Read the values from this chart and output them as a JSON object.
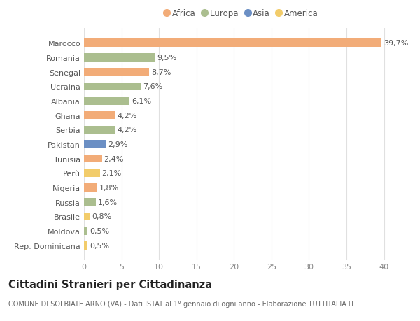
{
  "categories": [
    "Marocco",
    "Romania",
    "Senegal",
    "Ucraina",
    "Albania",
    "Ghana",
    "Serbia",
    "Pakistan",
    "Tunisia",
    "Perù",
    "Nigeria",
    "Russia",
    "Brasile",
    "Moldova",
    "Rep. Dominicana"
  ],
  "values": [
    39.7,
    9.5,
    8.7,
    7.6,
    6.1,
    4.2,
    4.2,
    2.9,
    2.4,
    2.1,
    1.8,
    1.6,
    0.8,
    0.5,
    0.5
  ],
  "labels": [
    "39,7%",
    "9,5%",
    "8,7%",
    "7,6%",
    "6,1%",
    "4,2%",
    "4,2%",
    "2,9%",
    "2,4%",
    "2,1%",
    "1,8%",
    "1,6%",
    "0,8%",
    "0,5%",
    "0,5%"
  ],
  "continents": [
    "Africa",
    "Europa",
    "Africa",
    "Europa",
    "Europa",
    "Africa",
    "Europa",
    "Asia",
    "Africa",
    "America",
    "Africa",
    "Europa",
    "America",
    "Europa",
    "America"
  ],
  "colors": {
    "Africa": "#F2AC78",
    "Europa": "#ABBE8F",
    "Asia": "#6B8FC4",
    "America": "#F2CC6A"
  },
  "title": "Cittadini Stranieri per Cittadinanza",
  "subtitle": "COMUNE DI SOLBIATE ARNO (VA) - Dati ISTAT al 1° gennaio di ogni anno - Elaborazione TUTTITALIA.IT",
  "xlim": [
    0,
    42
  ],
  "xticks": [
    0,
    5,
    10,
    15,
    20,
    25,
    30,
    35,
    40
  ],
  "background_color": "#ffffff",
  "grid_color": "#e0e0e0",
  "bar_height": 0.55,
  "label_fontsize": 8,
  "tick_fontsize": 8,
  "title_fontsize": 10.5,
  "subtitle_fontsize": 7
}
